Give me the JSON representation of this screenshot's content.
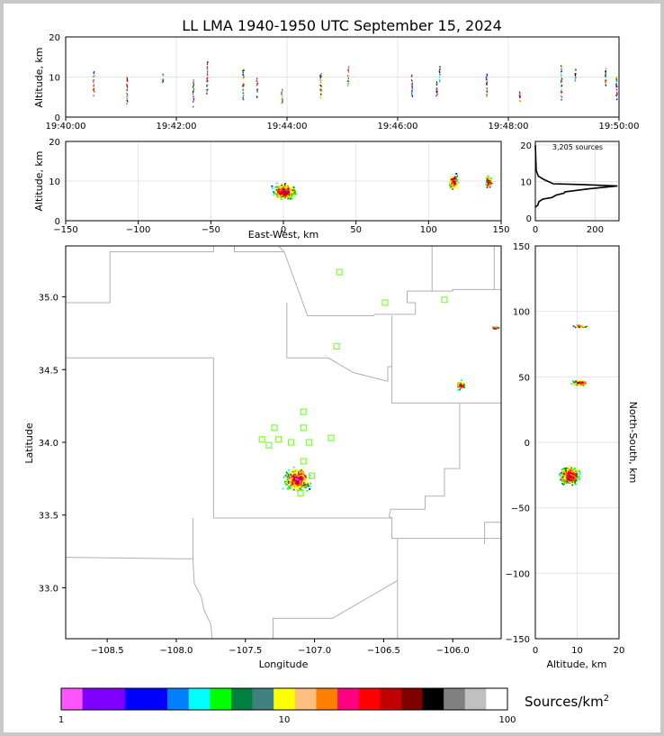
{
  "title": "LL LMA 1940-1950 UTC September 15, 2024",
  "source_count": "3,205 sources",
  "colorbar_label": "Sources/km",
  "colorbar_label_sup": "2",
  "colorbar_ticks": [
    "1",
    "10",
    "100"
  ],
  "colorbar_colors": [
    "#ff55ff",
    "#8000ff",
    "#8000ff",
    "#0000ff",
    "#0000ff",
    "#0080ff",
    "#00ffff",
    "#00ff00",
    "#008040",
    "#408080",
    "#ffff00",
    "#ffc080",
    "#ff8000",
    "#ff0080",
    "#ff0000",
    "#c00000",
    "#800000",
    "#000000",
    "#808080",
    "#c0c0c0",
    "#ffffff"
  ],
  "station_color": "#7cff32",
  "chart_data": [
    {
      "id": "time-height",
      "type": "scatter",
      "title": "",
      "xlabel": "",
      "ylabel": "Altitude, km",
      "xlim": [
        "19:40:00",
        "19:50:00"
      ],
      "ylim": [
        0,
        20
      ],
      "xticks": [
        "19:40:00",
        "19:42:00",
        "19:44:00",
        "19:46:00",
        "19:48:00",
        "19:50:00"
      ],
      "yticks": [
        "0",
        "10",
        "20"
      ],
      "grid": true,
      "flash_columns": [
        {
          "time_min": 0.5,
          "alt_min": 5.5,
          "alt_max": 11.5
        },
        {
          "time_min": 1.1,
          "alt_min": 3.5,
          "alt_max": 10.5
        },
        {
          "time_min": 1.75,
          "alt_min": 8.5,
          "alt_max": 11.5
        },
        {
          "time_min": 2.3,
          "alt_min": 2.5,
          "alt_max": 9.5
        },
        {
          "time_min": 2.55,
          "alt_min": 6.0,
          "alt_max": 14.0
        },
        {
          "time_min": 3.2,
          "alt_min": 4.5,
          "alt_max": 12.5
        },
        {
          "time_min": 3.45,
          "alt_min": 5.0,
          "alt_max": 10.0
        },
        {
          "time_min": 3.9,
          "alt_min": 3.0,
          "alt_max": 7.0
        },
        {
          "time_min": 4.6,
          "alt_min": 5.0,
          "alt_max": 11.0
        },
        {
          "time_min": 5.1,
          "alt_min": 8.0,
          "alt_max": 13.0
        },
        {
          "time_min": 6.25,
          "alt_min": 5.0,
          "alt_max": 11.0
        },
        {
          "time_min": 6.7,
          "alt_min": 5.5,
          "alt_max": 9.5
        },
        {
          "time_min": 6.75,
          "alt_min": 9.0,
          "alt_max": 13.0
        },
        {
          "time_min": 7.6,
          "alt_min": 5.0,
          "alt_max": 11.0
        },
        {
          "time_min": 8.2,
          "alt_min": 4.0,
          "alt_max": 6.5
        },
        {
          "time_min": 8.95,
          "alt_min": 4.5,
          "alt_max": 13.5
        },
        {
          "time_min": 9.2,
          "alt_min": 9.0,
          "alt_max": 12.5
        },
        {
          "time_min": 9.75,
          "alt_min": 8.0,
          "alt_max": 12.5
        },
        {
          "time_min": 9.95,
          "alt_min": 4.5,
          "alt_max": 10.5
        }
      ]
    },
    {
      "id": "east-west-altitude",
      "type": "scatter",
      "xlabel": "East-West, km",
      "ylabel": "Altitude, km",
      "xlim": [
        -150,
        150
      ],
      "ylim": [
        0,
        20
      ],
      "xticks": [
        "−150",
        "−100",
        "−50",
        "0",
        "50",
        "100",
        "150"
      ],
      "yticks": [
        "0",
        "10",
        "20"
      ],
      "grid": true,
      "clusters": [
        {
          "x": 0,
          "alt": 7.5,
          "x_spread": 10,
          "alt_spread": 2.5,
          "n": 340
        },
        {
          "x": 117,
          "alt": 10,
          "x_spread": 4,
          "alt_spread": 2.5,
          "n": 90
        },
        {
          "x": 141,
          "alt": 10,
          "x_spread": 3,
          "alt_spread": 2,
          "n": 60
        }
      ]
    },
    {
      "id": "altitude-histogram",
      "type": "line",
      "xlabel": "",
      "ylabel": "",
      "xlim": [
        0,
        280
      ],
      "ylim": [
        0,
        21
      ],
      "xticks": [
        "0",
        "200"
      ],
      "yticks": [
        "0",
        "10",
        "20"
      ],
      "grid": true,
      "points": [
        [
          0,
          3
        ],
        [
          8,
          3.5
        ],
        [
          12,
          4.5
        ],
        [
          25,
          5.2
        ],
        [
          55,
          5.6
        ],
        [
          70,
          6.3
        ],
        [
          95,
          6.8
        ],
        [
          100,
          7.2
        ],
        [
          180,
          8.0
        ],
        [
          275,
          8.8
        ],
        [
          150,
          9.2
        ],
        [
          60,
          9.4
        ],
        [
          30,
          10.5
        ],
        [
          10,
          11.5
        ],
        [
          3,
          13
        ],
        [
          0,
          20
        ]
      ]
    },
    {
      "id": "plan-view",
      "type": "scatter",
      "xlabel": "Longitude",
      "ylabel": "Latitude",
      "xlim": [
        -108.8,
        -105.65
      ],
      "ylim": [
        32.65,
        35.35
      ],
      "xticks": [
        "−108.5",
        "−108.0",
        "−107.5",
        "−107.0",
        "−106.5",
        "−106.0"
      ],
      "yticks": [
        "33.0",
        "33.5",
        "34.0",
        "34.5",
        "35.0"
      ],
      "grid": true,
      "clusters": [
        {
          "lon": -107.13,
          "lat": 33.75,
          "lon_spread": 0.12,
          "lat_spread": 0.1,
          "n": 320
        },
        {
          "lon": -105.95,
          "lat": 34.4,
          "lon_spread": 0.04,
          "lat_spread": 0.04,
          "n": 60
        },
        {
          "lon": -105.7,
          "lat": 34.79,
          "lon_spread": 0.03,
          "lat_spread": 0.01,
          "n": 25
        }
      ],
      "stations": [
        [
          -106.82,
          35.17
        ],
        [
          -106.49,
          34.96
        ],
        [
          -106.06,
          34.98
        ],
        [
          -106.84,
          34.66
        ],
        [
          -107.08,
          34.21
        ],
        [
          -107.08,
          34.1
        ],
        [
          -107.29,
          34.1
        ],
        [
          -107.38,
          34.02
        ],
        [
          -107.26,
          34.02
        ],
        [
          -107.33,
          33.98
        ],
        [
          -107.17,
          34.0
        ],
        [
          -107.04,
          34.0
        ],
        [
          -106.88,
          34.03
        ],
        [
          -107.08,
          33.87
        ],
        [
          -107.02,
          33.77
        ],
        [
          -107.1,
          33.65
        ]
      ],
      "boundaries": [
        [
          [
            -108.8,
            34.96
          ],
          [
            -108.48,
            34.96
          ],
          [
            -108.48,
            35.31
          ],
          [
            -107.73,
            35.31
          ],
          [
            -107.73,
            35.35
          ]
        ],
        [
          [
            -107.58,
            35.35
          ],
          [
            -107.58,
            35.31
          ],
          [
            -107.22,
            35.31
          ]
        ],
        [
          [
            -107.26,
            35.35
          ],
          [
            -107.22,
            35.31
          ],
          [
            -107.05,
            34.87
          ],
          [
            -106.58,
            34.87
          ],
          [
            -106.56,
            34.88
          ],
          [
            -106.27,
            34.88
          ],
          [
            -106.27,
            34.96
          ],
          [
            -106.33,
            34.96
          ],
          [
            -106.33,
            35.04
          ],
          [
            -106.0,
            35.04
          ],
          [
            -106.0,
            35.05
          ],
          [
            -105.65,
            35.05
          ]
        ],
        [
          [
            -106.15,
            35.35
          ],
          [
            -106.15,
            35.04
          ]
        ],
        [
          [
            -105.7,
            35.35
          ],
          [
            -105.7,
            35.05
          ]
        ],
        [
          [
            -107.2,
            34.96
          ],
          [
            -107.2,
            34.58
          ],
          [
            -106.9,
            34.58
          ],
          [
            -106.72,
            34.48
          ],
          [
            -106.47,
            34.42
          ],
          [
            -106.47,
            34.52
          ],
          [
            -106.44,
            34.52
          ],
          [
            -106.44,
            34.27
          ],
          [
            -105.65,
            34.27
          ]
        ],
        [
          [
            -106.44,
            34.52
          ],
          [
            -106.44,
            34.87
          ]
        ],
        [
          [
            -108.8,
            34.58
          ],
          [
            -107.73,
            34.58
          ]
        ],
        [
          [
            -107.73,
            34.58
          ],
          [
            -107.73,
            33.48
          ],
          [
            -107.2,
            33.48
          ],
          [
            -106.44,
            33.48
          ],
          [
            -106.44,
            33.34
          ],
          [
            -105.65,
            33.34
          ]
        ],
        [
          [
            -106.44,
            33.48
          ],
          [
            -106.46,
            33.49
          ],
          [
            -106.45,
            33.54
          ],
          [
            -106.2,
            33.54
          ],
          [
            -106.2,
            33.63
          ],
          [
            -106.06,
            33.63
          ],
          [
            -106.06,
            33.82
          ],
          [
            -105.95,
            33.82
          ],
          [
            -105.95,
            34.27
          ]
        ],
        [
          [
            -105.77,
            33.3
          ],
          [
            -105.77,
            33.45
          ],
          [
            -105.65,
            33.45
          ]
        ],
        [
          [
            -108.8,
            33.21
          ],
          [
            -108.0,
            33.2
          ],
          [
            -107.88,
            33.2
          ],
          [
            -107.87,
            33.03
          ],
          [
            -107.82,
            32.94
          ],
          [
            -107.8,
            32.85
          ],
          [
            -107.75,
            32.75
          ],
          [
            -107.74,
            32.65
          ]
        ],
        [
          [
            -107.88,
            33.48
          ],
          [
            -107.88,
            33.2
          ]
        ],
        [
          [
            -107.3,
            32.65
          ],
          [
            -107.3,
            32.79
          ],
          [
            -106.87,
            32.79
          ],
          [
            -106.4,
            33.05
          ],
          [
            -106.4,
            33.34
          ]
        ],
        [
          [
            -106.4,
            32.65
          ],
          [
            -106.4,
            33.05
          ]
        ]
      ]
    },
    {
      "id": "altitude-north-south",
      "type": "scatter",
      "xlabel": "Altitude, km",
      "ylabel": "North-South, km",
      "xlim": [
        0,
        20
      ],
      "ylim": [
        -150,
        150
      ],
      "xticks": [
        "0",
        "10",
        "20"
      ],
      "yticks": [
        "−150",
        "−100",
        "−50",
        "0",
        "50",
        "100",
        "150"
      ],
      "grid": true,
      "clusters": [
        {
          "alt": 8.0,
          "ns": -25,
          "alt_spread": 3,
          "ns_spread": 9,
          "n": 320
        },
        {
          "alt": 10.5,
          "ns": 46,
          "alt_spread": 2.5,
          "ns_spread": 3,
          "n": 70
        },
        {
          "alt": 10.5,
          "ns": 89,
          "alt_spread": 2,
          "ns_spread": 1.5,
          "n": 30
        }
      ]
    }
  ]
}
